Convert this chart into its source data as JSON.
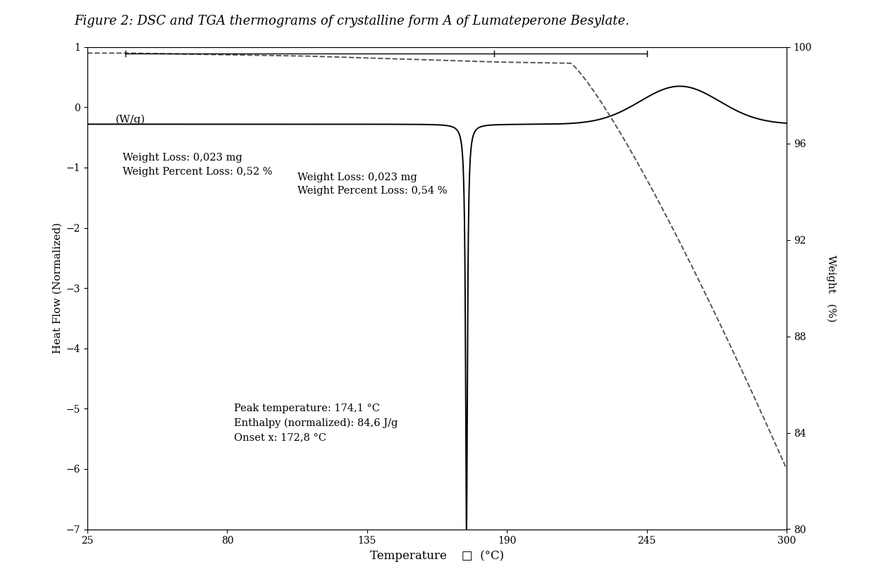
{
  "title": "Figure 2: DSC and TGA thermograms of crystalline form A of Lumateperone Besylate.",
  "xlabel": "Temperature    □  (°C)",
  "ylabel_left": "Heat Flow (Normalized)",
  "ylabel_left_unit": "(W/g)",
  "ylabel_right": "Weight   (%)",
  "xlim": [
    25,
    300
  ],
  "ylim_left": [
    -7,
    1
  ],
  "ylim_right": [
    80,
    100
  ],
  "xticks": [
    25,
    80,
    135,
    190,
    245,
    300
  ],
  "yticks_left": [
    -7,
    -6,
    -5,
    -4,
    -3,
    -2,
    -1,
    0,
    1
  ],
  "yticks_right": [
    80,
    84,
    88,
    92,
    96,
    100
  ],
  "dsc_color": "#000000",
  "tga_color": "#555555",
  "tga_linestyle": "--",
  "annotation_bottom": "Peak temperature: 174,1 °C\nEnthalpy (normalized): 84,6 J/g\nOnset x: 172,8 °C",
  "annotation_top1": "Weight Loss: 0,023 mg\nWeight Percent Loss: 0,52 %",
  "annotation_top2": "Weight Loss: 0,023 mg\nWeight Percent Loss: 0,54 %",
  "background_color": "#ffffff",
  "font_family": "DejaVu Serif"
}
